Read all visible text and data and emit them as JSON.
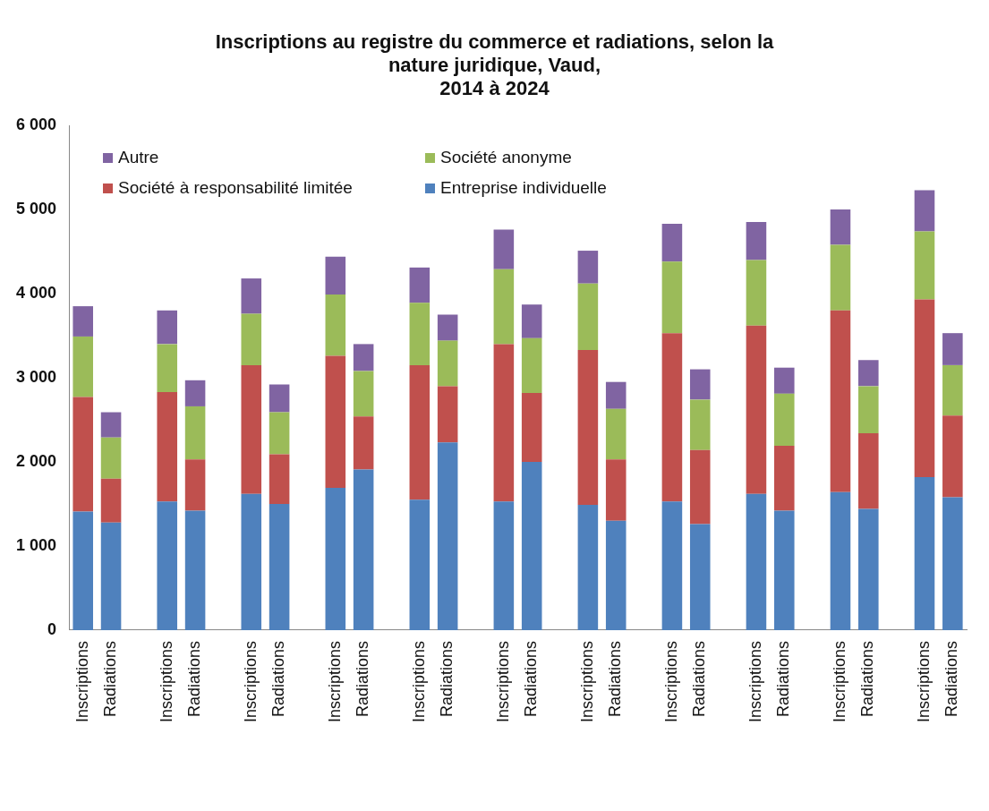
{
  "chart_data": {
    "type": "bar",
    "title": "Inscriptions au registre du commerce et radiations, selon la\nnature juridique, Vaud,\n2014 à 2024",
    "stacked": true,
    "legend": "top left",
    "grid": false,
    "categories": [
      "Inscriptions",
      "Radiations",
      null,
      "Inscriptions",
      "Radiations",
      null,
      "Inscriptions",
      "Radiations",
      null,
      "Inscriptions",
      "Radiations",
      null,
      "Inscriptions",
      "Radiations",
      null,
      "Inscriptions",
      "Radiations",
      null,
      "Inscriptions",
      "Radiations",
      null,
      "Inscriptions",
      "Radiations",
      null,
      "Inscriptions",
      "Radiations",
      null,
      "Inscriptions",
      "Radiations",
      null,
      "Inscriptions",
      "Radiations"
    ],
    "ylim": [
      0,
      6000
    ],
    "yticks": [
      0,
      {
        "value": 1000,
        "label": "1 000"
      },
      {
        "value": 2000,
        "label": "2 000"
      },
      {
        "value": 3000,
        "label": "3 000"
      },
      {
        "value": 4000,
        "label": "4 000"
      },
      {
        "value": 5000,
        "label": "5 000"
      },
      {
        "value": 6000,
        "label": "6 000"
      }
    ],
    "series": [
      {
        "name": "Entreprise individuelle",
        "color": "#4f81bd",
        "values": [
          1410,
          1280,
          null,
          1530,
          1420,
          null,
          1620,
          1500,
          null,
          1690,
          1910,
          null,
          1550,
          2230,
          null,
          1530,
          2000,
          null,
          1490,
          1300,
          null,
          1530,
          1260,
          null,
          1620,
          1420,
          null,
          1640,
          1440,
          null,
          1820,
          1580
        ]
      },
      {
        "name": "Société à responsabilité limitée",
        "color": "#c0504d",
        "values": [
          1360,
          520,
          null,
          1300,
          610,
          null,
          1530,
          590,
          null,
          1570,
          630,
          null,
          1600,
          670,
          null,
          1870,
          820,
          null,
          1840,
          730,
          null,
          2000,
          880,
          null,
          2000,
          770,
          null,
          2160,
          900,
          null,
          2110,
          970
        ]
      },
      {
        "name": "Société anonyme",
        "color": "#9bbb59",
        "values": [
          720,
          490,
          null,
          570,
          630,
          null,
          610,
          500,
          null,
          730,
          540,
          null,
          740,
          540,
          null,
          890,
          650,
          null,
          790,
          600,
          null,
          850,
          600,
          null,
          780,
          620,
          null,
          780,
          560,
          null,
          810,
          600
        ]
      },
      {
        "name": "Autre",
        "color": "#8064a2",
        "values": [
          360,
          300,
          null,
          400,
          310,
          null,
          420,
          330,
          null,
          450,
          320,
          null,
          420,
          310,
          null,
          470,
          400,
          null,
          390,
          320,
          null,
          450,
          360,
          null,
          450,
          310,
          null,
          420,
          310,
          null,
          490,
          380
        ]
      }
    ]
  }
}
